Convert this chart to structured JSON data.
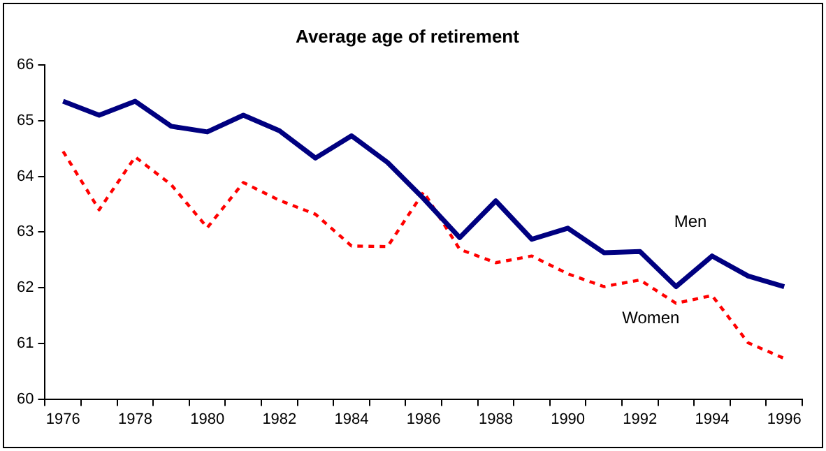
{
  "chart_data": {
    "type": "line",
    "title": "Average age of retirement",
    "categories": [
      "1976",
      null,
      "1978",
      null,
      "1980",
      null,
      "1982",
      null,
      "1984",
      null,
      "1986",
      null,
      "1988",
      null,
      "1990",
      null,
      "1992",
      null,
      "1994",
      null,
      "1996"
    ],
    "series": [
      {
        "name": "Men",
        "color": "#000080",
        "line_style": "solid",
        "values": [
          65.35,
          65.1,
          65.35,
          64.9,
          64.8,
          65.1,
          64.82,
          64.33,
          64.73,
          64.25,
          63.6,
          62.9,
          63.56,
          62.87,
          63.07,
          62.63,
          62.65,
          62.02,
          62.57,
          62.21,
          62.02
        ]
      },
      {
        "name": "Women",
        "color": "#ff0000",
        "line_style": "dashed",
        "values": [
          64.45,
          63.4,
          64.35,
          63.85,
          63.08,
          63.89,
          63.57,
          63.32,
          62.75,
          62.74,
          63.72,
          62.69,
          62.45,
          62.57,
          62.25,
          62.02,
          62.14,
          61.72,
          61.86,
          61.01,
          60.73
        ]
      }
    ],
    "ylim": [
      60,
      66
    ],
    "yticks": [
      60,
      61,
      62,
      63,
      64,
      65,
      66
    ],
    "grid": false,
    "legend": false,
    "marker": "none"
  }
}
